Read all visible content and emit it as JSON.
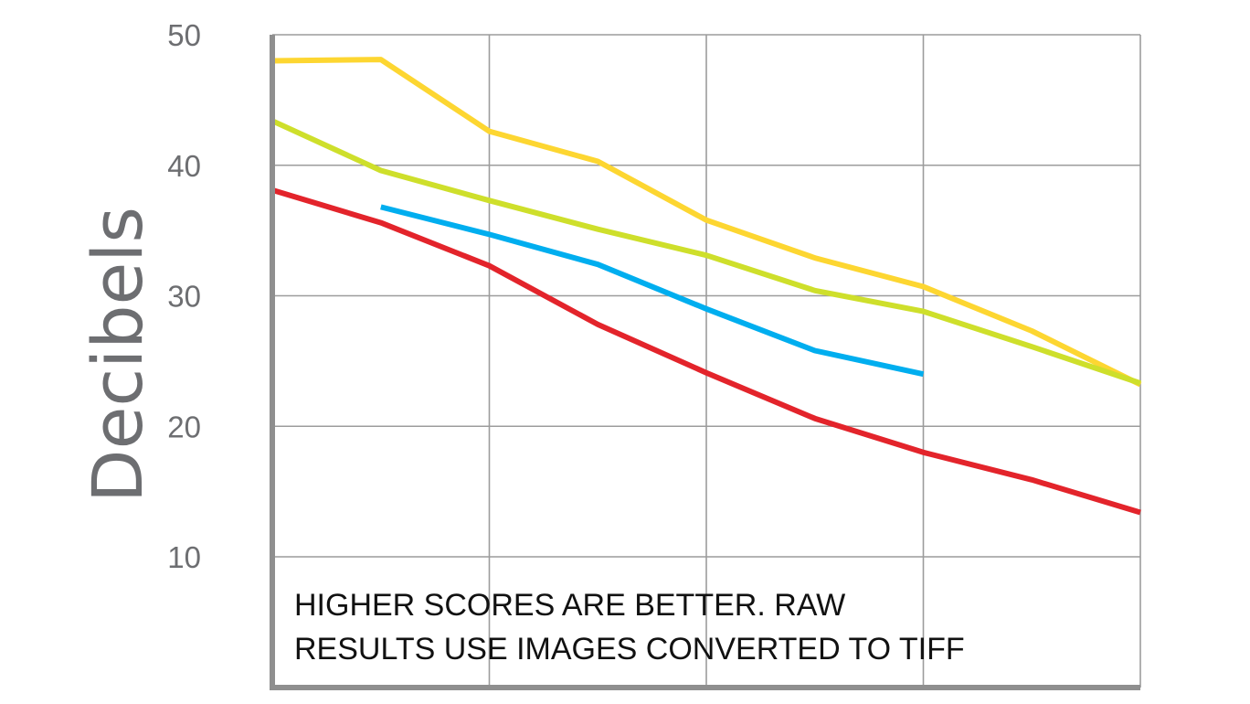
{
  "chart_data": {
    "type": "line",
    "title": "",
    "xlabel": "",
    "ylabel": "Decibels",
    "ylim": [
      0,
      50
    ],
    "yticks": [
      10,
      20,
      30,
      40,
      50
    ],
    "x": [
      1,
      2,
      3,
      4,
      5,
      6,
      7,
      8,
      9
    ],
    "grid": true,
    "legend": "none",
    "annotation": {
      "line1": "HIGHER SCORES ARE BETTER. RAW",
      "line2": "RESULTS USE IMAGES CONVERTED TO TIFF"
    },
    "series": [
      {
        "color": "#fdd631",
        "values": [
          48,
          48.1,
          42.6,
          40.3,
          35.8,
          32.9,
          30.7,
          27.3,
          23.2
        ]
      },
      {
        "color": "#cedf2b",
        "values": [
          43.4,
          39.6,
          37.3,
          35.1,
          33.1,
          30.4,
          28.8,
          26.1,
          23.3
        ]
      },
      {
        "color": "#00aeef",
        "values": [
          null,
          36.8,
          34.7,
          32.4,
          29,
          25.8,
          24,
          null,
          null
        ]
      },
      {
        "color": "#e3242b",
        "values": [
          38.1,
          35.6,
          32.3,
          27.8,
          24.1,
          20.6,
          18,
          15.9,
          13.4
        ]
      }
    ]
  }
}
